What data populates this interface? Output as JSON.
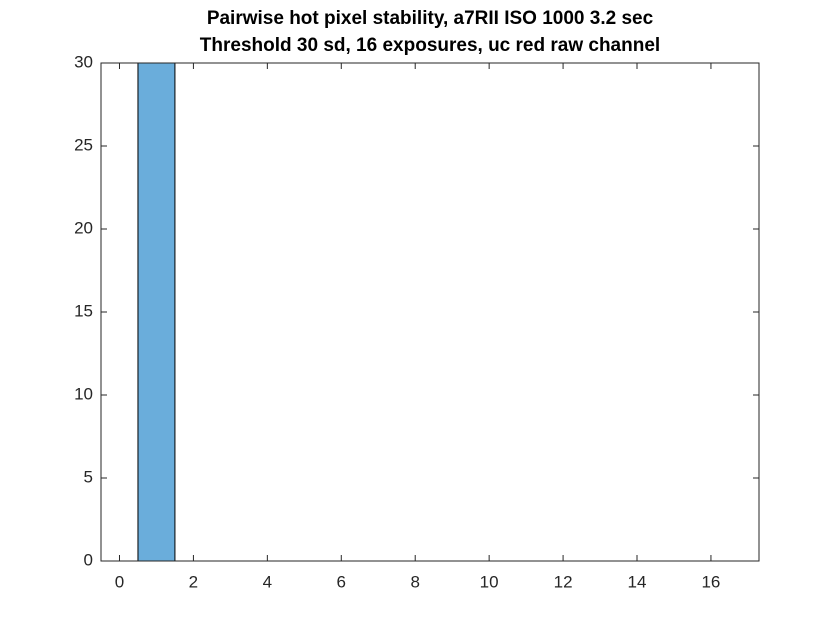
{
  "chart_data": {
    "type": "histogram",
    "title": [
      "Pairwise hot pixel stability, a7RII ISO 1000 3.2 sec",
      "Threshold 30 sd, 16 exposures, uc red raw channel"
    ],
    "bins": [
      0.5,
      1.5,
      2.5,
      3.5,
      4.5,
      5.5,
      6.5,
      7.5,
      8.5,
      9.5,
      10.5,
      11.5,
      12.5,
      13.5,
      14.5,
      15.5,
      16.5
    ],
    "values": [
      30,
      0,
      0,
      0,
      0,
      0,
      0,
      0,
      0,
      0,
      0,
      0,
      0,
      0,
      0,
      0
    ],
    "color": "#6aaddb",
    "xlim": [
      -0.5,
      17.3
    ],
    "ylim": [
      0,
      30
    ],
    "xticks": [
      0,
      2,
      4,
      6,
      8,
      10,
      12,
      14,
      16
    ],
    "yticks": [
      0,
      5,
      10,
      15,
      20,
      25,
      30
    ]
  }
}
